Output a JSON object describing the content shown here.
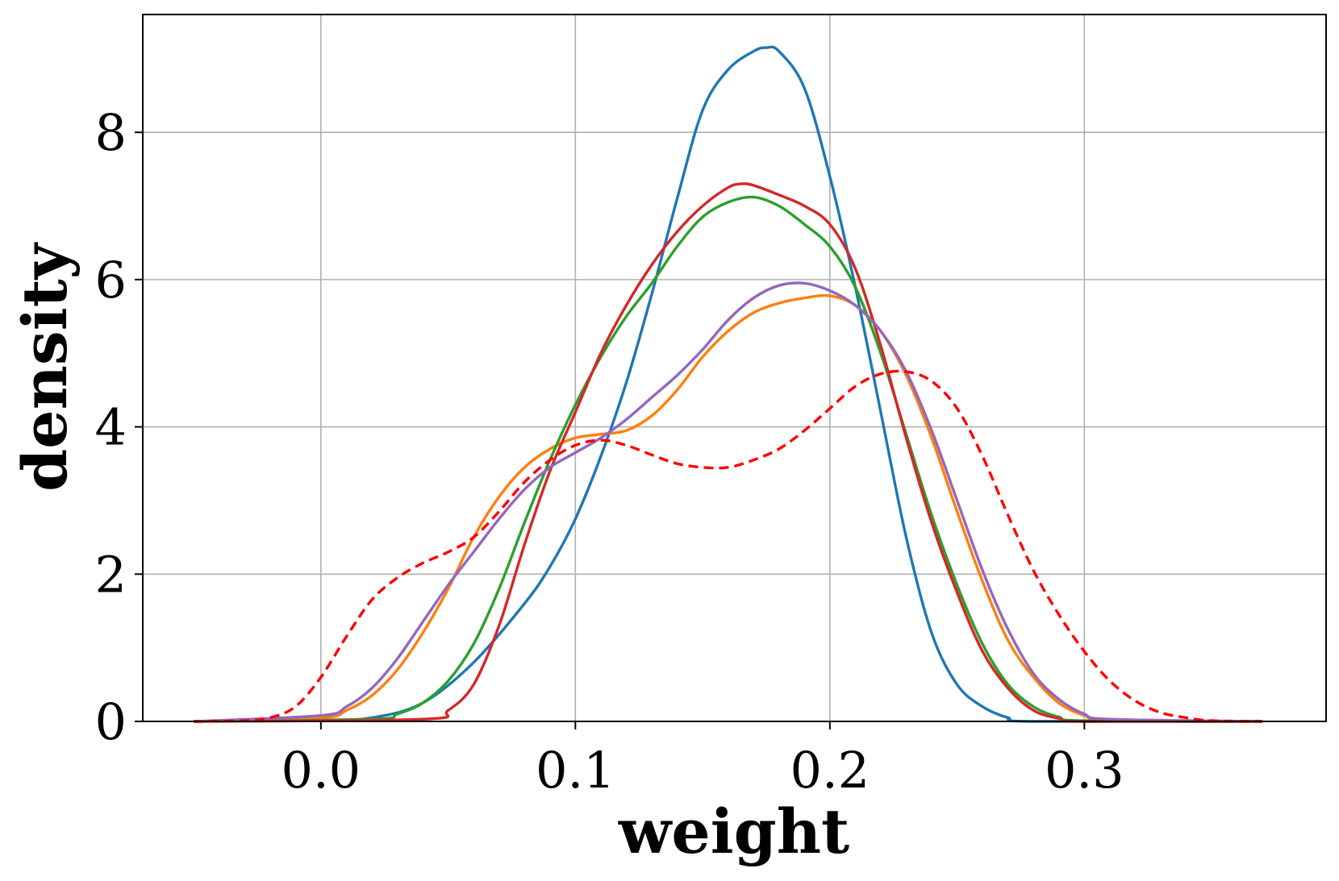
{
  "chart_data": {
    "type": "line",
    "title": "",
    "xlabel": "weight",
    "ylabel": "density",
    "xlim": [
      -0.07,
      0.395
    ],
    "ylim": [
      0,
      9.6
    ],
    "x_ticks": [
      "0.0",
      "0.1",
      "0.2",
      "0.3"
    ],
    "x_tick_values": [
      0.0,
      0.1,
      0.2,
      0.3
    ],
    "y_ticks": [
      "0",
      "2",
      "4",
      "6",
      "8"
    ],
    "y_tick_values": [
      0,
      2,
      4,
      6,
      8
    ],
    "grid": true,
    "legend": "none",
    "series": [
      {
        "color": "#1f77b4",
        "style": "solid",
        "points": [
          [
            -0.05,
            0
          ],
          [
            0,
            0.02
          ],
          [
            0.02,
            0.05
          ],
          [
            0.04,
            0.25
          ],
          [
            0.06,
            0.8
          ],
          [
            0.08,
            1.6
          ],
          [
            0.09,
            2.1
          ],
          [
            0.1,
            2.75
          ],
          [
            0.11,
            3.6
          ],
          [
            0.12,
            4.6
          ],
          [
            0.13,
            5.8
          ],
          [
            0.14,
            7.1
          ],
          [
            0.15,
            8.3
          ],
          [
            0.16,
            8.85
          ],
          [
            0.17,
            9.1
          ],
          [
            0.175,
            9.15
          ],
          [
            0.18,
            9.1
          ],
          [
            0.19,
            8.6
          ],
          [
            0.2,
            7.4
          ],
          [
            0.21,
            5.9
          ],
          [
            0.22,
            4.2
          ],
          [
            0.23,
            2.5
          ],
          [
            0.24,
            1.2
          ],
          [
            0.25,
            0.5
          ],
          [
            0.26,
            0.2
          ],
          [
            0.27,
            0.05
          ],
          [
            0.28,
            0
          ],
          [
            0.37,
            0
          ]
        ]
      },
      {
        "color": "#ff7f0e",
        "style": "solid",
        "points": [
          [
            -0.05,
            0
          ],
          [
            0,
            0.05
          ],
          [
            0.01,
            0.15
          ],
          [
            0.02,
            0.35
          ],
          [
            0.03,
            0.7
          ],
          [
            0.04,
            1.2
          ],
          [
            0.05,
            1.8
          ],
          [
            0.06,
            2.5
          ],
          [
            0.07,
            3.05
          ],
          [
            0.08,
            3.45
          ],
          [
            0.09,
            3.7
          ],
          [
            0.1,
            3.85
          ],
          [
            0.11,
            3.9
          ],
          [
            0.12,
            3.95
          ],
          [
            0.13,
            4.15
          ],
          [
            0.14,
            4.5
          ],
          [
            0.15,
            4.95
          ],
          [
            0.16,
            5.3
          ],
          [
            0.17,
            5.55
          ],
          [
            0.18,
            5.68
          ],
          [
            0.19,
            5.75
          ],
          [
            0.2,
            5.78
          ],
          [
            0.21,
            5.65
          ],
          [
            0.22,
            5.3
          ],
          [
            0.23,
            4.7
          ],
          [
            0.24,
            3.85
          ],
          [
            0.25,
            2.85
          ],
          [
            0.26,
            1.9
          ],
          [
            0.27,
            1.1
          ],
          [
            0.28,
            0.6
          ],
          [
            0.29,
            0.25
          ],
          [
            0.3,
            0.08
          ],
          [
            0.31,
            0.02
          ],
          [
            0.37,
            0
          ]
        ]
      },
      {
        "color": "#2ca02c",
        "style": "solid",
        "points": [
          [
            -0.05,
            0
          ],
          [
            0.02,
            0.03
          ],
          [
            0.03,
            0.1
          ],
          [
            0.04,
            0.25
          ],
          [
            0.05,
            0.55
          ],
          [
            0.06,
            1.05
          ],
          [
            0.07,
            1.8
          ],
          [
            0.08,
            2.7
          ],
          [
            0.09,
            3.55
          ],
          [
            0.1,
            4.3
          ],
          [
            0.11,
            4.95
          ],
          [
            0.12,
            5.5
          ],
          [
            0.13,
            5.95
          ],
          [
            0.14,
            6.45
          ],
          [
            0.15,
            6.85
          ],
          [
            0.16,
            7.05
          ],
          [
            0.17,
            7.12
          ],
          [
            0.18,
            7.0
          ],
          [
            0.19,
            6.75
          ],
          [
            0.2,
            6.45
          ],
          [
            0.21,
            5.9
          ],
          [
            0.22,
            5.0
          ],
          [
            0.23,
            3.9
          ],
          [
            0.24,
            2.8
          ],
          [
            0.25,
            1.85
          ],
          [
            0.26,
            1.05
          ],
          [
            0.27,
            0.5
          ],
          [
            0.28,
            0.2
          ],
          [
            0.29,
            0.06
          ],
          [
            0.3,
            0.01
          ],
          [
            0.37,
            0
          ]
        ]
      },
      {
        "color": "#d62728",
        "style": "solid",
        "points": [
          [
            -0.05,
            0
          ],
          [
            0.04,
            0.03
          ],
          [
            0.05,
            0.15
          ],
          [
            0.06,
            0.5
          ],
          [
            0.07,
            1.3
          ],
          [
            0.08,
            2.4
          ],
          [
            0.09,
            3.4
          ],
          [
            0.1,
            4.2
          ],
          [
            0.11,
            5.0
          ],
          [
            0.12,
            5.65
          ],
          [
            0.13,
            6.2
          ],
          [
            0.14,
            6.65
          ],
          [
            0.15,
            7.0
          ],
          [
            0.16,
            7.25
          ],
          [
            0.165,
            7.3
          ],
          [
            0.17,
            7.28
          ],
          [
            0.18,
            7.15
          ],
          [
            0.19,
            7.0
          ],
          [
            0.2,
            6.75
          ],
          [
            0.21,
            6.15
          ],
          [
            0.22,
            5.1
          ],
          [
            0.23,
            3.85
          ],
          [
            0.24,
            2.7
          ],
          [
            0.25,
            1.75
          ],
          [
            0.26,
            0.95
          ],
          [
            0.27,
            0.45
          ],
          [
            0.28,
            0.15
          ],
          [
            0.29,
            0.04
          ],
          [
            0.3,
            0
          ],
          [
            0.37,
            0
          ]
        ]
      },
      {
        "color": "#9467bd",
        "style": "solid",
        "points": [
          [
            -0.05,
            0
          ],
          [
            0,
            0.08
          ],
          [
            0.01,
            0.2
          ],
          [
            0.02,
            0.45
          ],
          [
            0.03,
            0.85
          ],
          [
            0.04,
            1.35
          ],
          [
            0.05,
            1.85
          ],
          [
            0.06,
            2.3
          ],
          [
            0.07,
            2.75
          ],
          [
            0.08,
            3.15
          ],
          [
            0.09,
            3.45
          ],
          [
            0.1,
            3.65
          ],
          [
            0.11,
            3.85
          ],
          [
            0.12,
            4.1
          ],
          [
            0.13,
            4.4
          ],
          [
            0.14,
            4.7
          ],
          [
            0.15,
            5.05
          ],
          [
            0.16,
            5.45
          ],
          [
            0.17,
            5.75
          ],
          [
            0.18,
            5.92
          ],
          [
            0.19,
            5.95
          ],
          [
            0.2,
            5.85
          ],
          [
            0.21,
            5.65
          ],
          [
            0.22,
            5.3
          ],
          [
            0.23,
            4.75
          ],
          [
            0.24,
            3.95
          ],
          [
            0.25,
            3.0
          ],
          [
            0.26,
            2.05
          ],
          [
            0.27,
            1.25
          ],
          [
            0.28,
            0.65
          ],
          [
            0.29,
            0.3
          ],
          [
            0.3,
            0.1
          ],
          [
            0.31,
            0.03
          ],
          [
            0.37,
            0
          ]
        ]
      },
      {
        "color": "#ff0000",
        "style": "dashed",
        "points": [
          [
            -0.05,
            0
          ],
          [
            -0.03,
            0.01
          ],
          [
            -0.02,
            0.05
          ],
          [
            -0.01,
            0.2
          ],
          [
            0,
            0.6
          ],
          [
            0.01,
            1.15
          ],
          [
            0.02,
            1.65
          ],
          [
            0.03,
            1.95
          ],
          [
            0.04,
            2.15
          ],
          [
            0.05,
            2.3
          ],
          [
            0.06,
            2.5
          ],
          [
            0.07,
            2.85
          ],
          [
            0.08,
            3.25
          ],
          [
            0.09,
            3.55
          ],
          [
            0.1,
            3.75
          ],
          [
            0.11,
            3.82
          ],
          [
            0.12,
            3.75
          ],
          [
            0.13,
            3.62
          ],
          [
            0.14,
            3.5
          ],
          [
            0.15,
            3.45
          ],
          [
            0.16,
            3.45
          ],
          [
            0.17,
            3.55
          ],
          [
            0.18,
            3.7
          ],
          [
            0.19,
            3.95
          ],
          [
            0.2,
            4.25
          ],
          [
            0.21,
            4.55
          ],
          [
            0.22,
            4.72
          ],
          [
            0.23,
            4.75
          ],
          [
            0.24,
            4.62
          ],
          [
            0.25,
            4.25
          ],
          [
            0.26,
            3.6
          ],
          [
            0.27,
            2.8
          ],
          [
            0.28,
            2.05
          ],
          [
            0.29,
            1.45
          ],
          [
            0.3,
            0.95
          ],
          [
            0.31,
            0.55
          ],
          [
            0.32,
            0.28
          ],
          [
            0.33,
            0.12
          ],
          [
            0.34,
            0.05
          ],
          [
            0.35,
            0.01
          ],
          [
            0.37,
            0
          ]
        ]
      }
    ]
  }
}
